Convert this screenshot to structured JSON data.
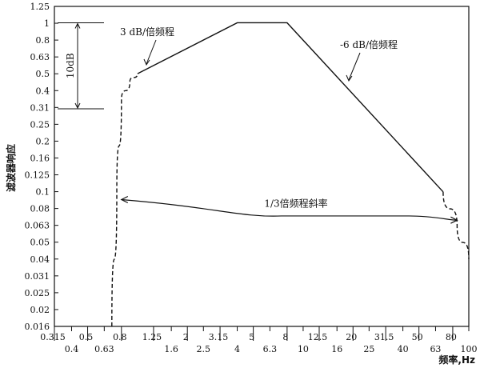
{
  "chart_data": {
    "type": "line",
    "title": "",
    "ylabel": "滤波器响应",
    "xlabel": "频率,Hz",
    "y_scale": "log",
    "x_scale": "log",
    "ylim": [
      0.016,
      1.25
    ],
    "xlim": [
      0.315,
      100
    ],
    "y_ticks": [
      "1.25",
      "1",
      "0.8",
      "0.63",
      "0.5",
      "0.4",
      "0.31",
      "0.25",
      "0.2",
      "0.16",
      "0.125",
      "0.1",
      "0.08",
      "0.063",
      "0.05",
      "0.04",
      "0.031",
      "0.025",
      "0.02",
      "0.016"
    ],
    "x_ticks_upper": [
      "0.315",
      "0.5",
      "0.8",
      "1.25",
      "2",
      "3.15",
      "5",
      "8",
      "12.5",
      "20",
      "31.5",
      "50",
      "80"
    ],
    "x_ticks_lower": [
      "0.4",
      "0.63",
      "1.6",
      "2.5",
      "4",
      "6.3",
      "10",
      "16",
      "25",
      "40",
      "63",
      "100"
    ],
    "series": [
      {
        "style": "solid",
        "points": [
          [
            1.0,
            0.5
          ],
          [
            4.0,
            1.0
          ],
          [
            8.0,
            1.0
          ],
          [
            70.0,
            0.1
          ]
        ]
      },
      {
        "style": "dashed",
        "points": [
          [
            0.7,
            0.016
          ],
          [
            0.75,
            0.1
          ],
          [
            0.8,
            0.35
          ],
          [
            0.9,
            0.45
          ],
          [
            1.0,
            0.5
          ]
        ]
      },
      {
        "style": "dashed",
        "points": [
          [
            70.0,
            0.1
          ],
          [
            85.0,
            0.063
          ],
          [
            100.0,
            0.04
          ]
        ]
      }
    ],
    "annotations": {
      "slope_up": "3 dB/倍频程",
      "slope_down": "-6 dB/倍频程",
      "db_range": "10dB",
      "third_octave": "1/3倍频程斜率"
    }
  }
}
